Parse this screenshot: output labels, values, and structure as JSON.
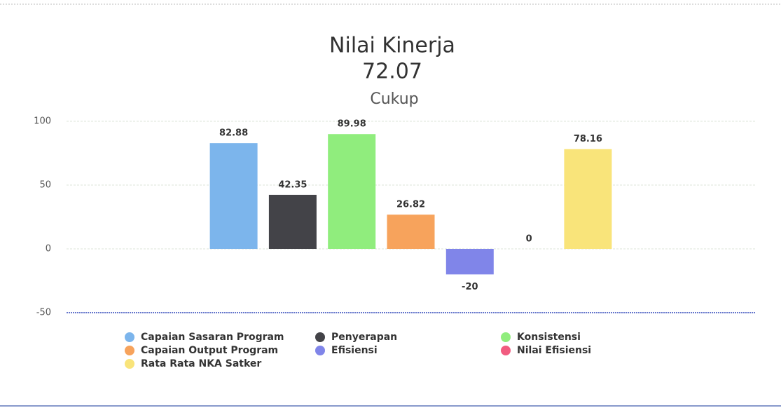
{
  "chart_data": {
    "type": "bar",
    "title": "Nilai Kinerja",
    "subtitle": "72.07",
    "caption": "Cukup",
    "categories": [
      null
    ],
    "series": [
      {
        "name": "Capaian Sasaran Program",
        "color": "#7cb5ec",
        "values": [
          82.88
        ]
      },
      {
        "name": "Penyerapan",
        "color": "#434348",
        "values": [
          42.35
        ]
      },
      {
        "name": "Konsistensi",
        "color": "#90ed7d",
        "values": [
          89.98
        ]
      },
      {
        "name": "Capaian Output Program",
        "color": "#f7a35c",
        "values": [
          26.82
        ]
      },
      {
        "name": "Efisiensi",
        "color": "#8085e9",
        "values": [
          -20
        ]
      },
      {
        "name": "Nilai Efisiensi",
        "color": "#f15c80",
        "values": [
          0
        ]
      },
      {
        "name": "Rata Rata NKA Satker",
        "color": "#f9e47a",
        "values": [
          78.16
        ]
      }
    ],
    "ylim": [
      -50,
      100
    ],
    "yticks": [
      -50,
      0,
      50,
      100
    ],
    "grid": true,
    "legend": "bottom"
  }
}
